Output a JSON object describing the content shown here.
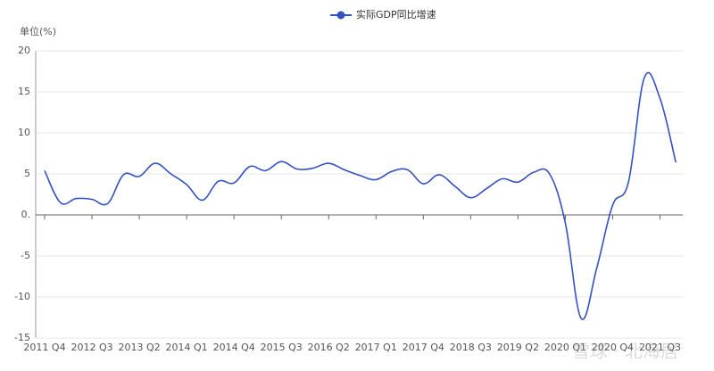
{
  "chart_data": {
    "type": "line",
    "legend_title": null,
    "y_axis_label": "单位(%)",
    "watermark": "雪球 · 北海居",
    "categories": [
      "2011 Q4",
      null,
      null,
      "2012 Q3",
      null,
      null,
      "2013 Q2",
      null,
      null,
      "2014 Q1",
      null,
      null,
      "2014 Q4",
      null,
      null,
      "2015 Q3",
      null,
      null,
      "2016 Q2",
      null,
      null,
      "2017 Q1",
      null,
      null,
      "2017 Q4",
      null,
      null,
      "2018 Q3",
      null,
      null,
      "2019 Q2",
      null,
      null,
      "2020 Q1",
      null,
      null,
      "2020 Q4",
      null,
      null,
      "2021 Q3",
      null
    ],
    "series": [
      {
        "name": "实际GDP同比增速",
        "color": "#3352c0",
        "values": [
          5.4,
          1.5,
          2.0,
          1.9,
          1.4,
          4.9,
          4.7,
          6.3,
          5.0,
          3.7,
          1.8,
          4.1,
          3.9,
          5.9,
          5.4,
          6.5,
          5.6,
          5.7,
          6.3,
          5.5,
          4.8,
          4.3,
          5.3,
          5.5,
          3.8,
          4.9,
          3.5,
          2.1,
          3.2,
          4.4,
          4.0,
          5.2,
          5.0,
          -1.0,
          -12.6,
          -6.4,
          1.2,
          4.0,
          16.7,
          14.2,
          6.4
        ]
      }
    ],
    "ylim": [
      -15,
      20
    ],
    "yticks": [
      -15,
      -10,
      -5,
      {
        "value": 0,
        "label": "0."
      },
      5,
      10,
      15,
      20
    ],
    "grid": true,
    "legend": "top"
  }
}
